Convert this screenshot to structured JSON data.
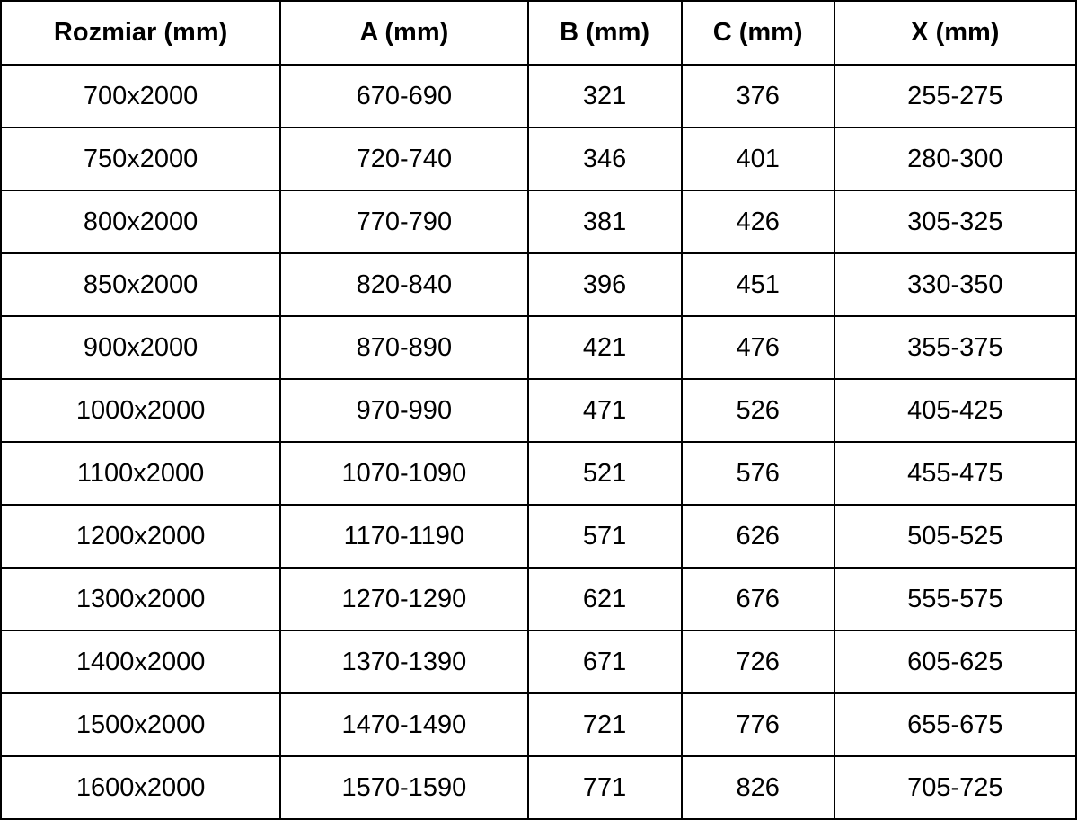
{
  "table": {
    "columns": [
      "Rozmiar (mm)",
      "A (mm)",
      "B (mm)",
      "C (mm)",
      "X (mm)"
    ],
    "rows": [
      [
        "700x2000",
        "670-690",
        "321",
        "376",
        "255-275"
      ],
      [
        "750x2000",
        "720-740",
        "346",
        "401",
        "280-300"
      ],
      [
        "800x2000",
        "770-790",
        "381",
        "426",
        "305-325"
      ],
      [
        "850x2000",
        "820-840",
        "396",
        "451",
        "330-350"
      ],
      [
        "900x2000",
        "870-890",
        "421",
        "476",
        "355-375"
      ],
      [
        "1000x2000",
        "970-990",
        "471",
        "526",
        "405-425"
      ],
      [
        "1100x2000",
        "1070-1090",
        "521",
        "576",
        "455-475"
      ],
      [
        "1200x2000",
        "1170-1190",
        "571",
        "626",
        "505-525"
      ],
      [
        "1300x2000",
        "1270-1290",
        "621",
        "676",
        "555-575"
      ],
      [
        "1400x2000",
        "1370-1390",
        "671",
        "726",
        "605-625"
      ],
      [
        "1500x2000",
        "1470-1490",
        "721",
        "776",
        "655-675"
      ],
      [
        "1600x2000",
        "1570-1590",
        "771",
        "826",
        "705-725"
      ]
    ]
  },
  "colors": {
    "border": "#000000",
    "text": "#000000",
    "background": "#ffffff"
  }
}
